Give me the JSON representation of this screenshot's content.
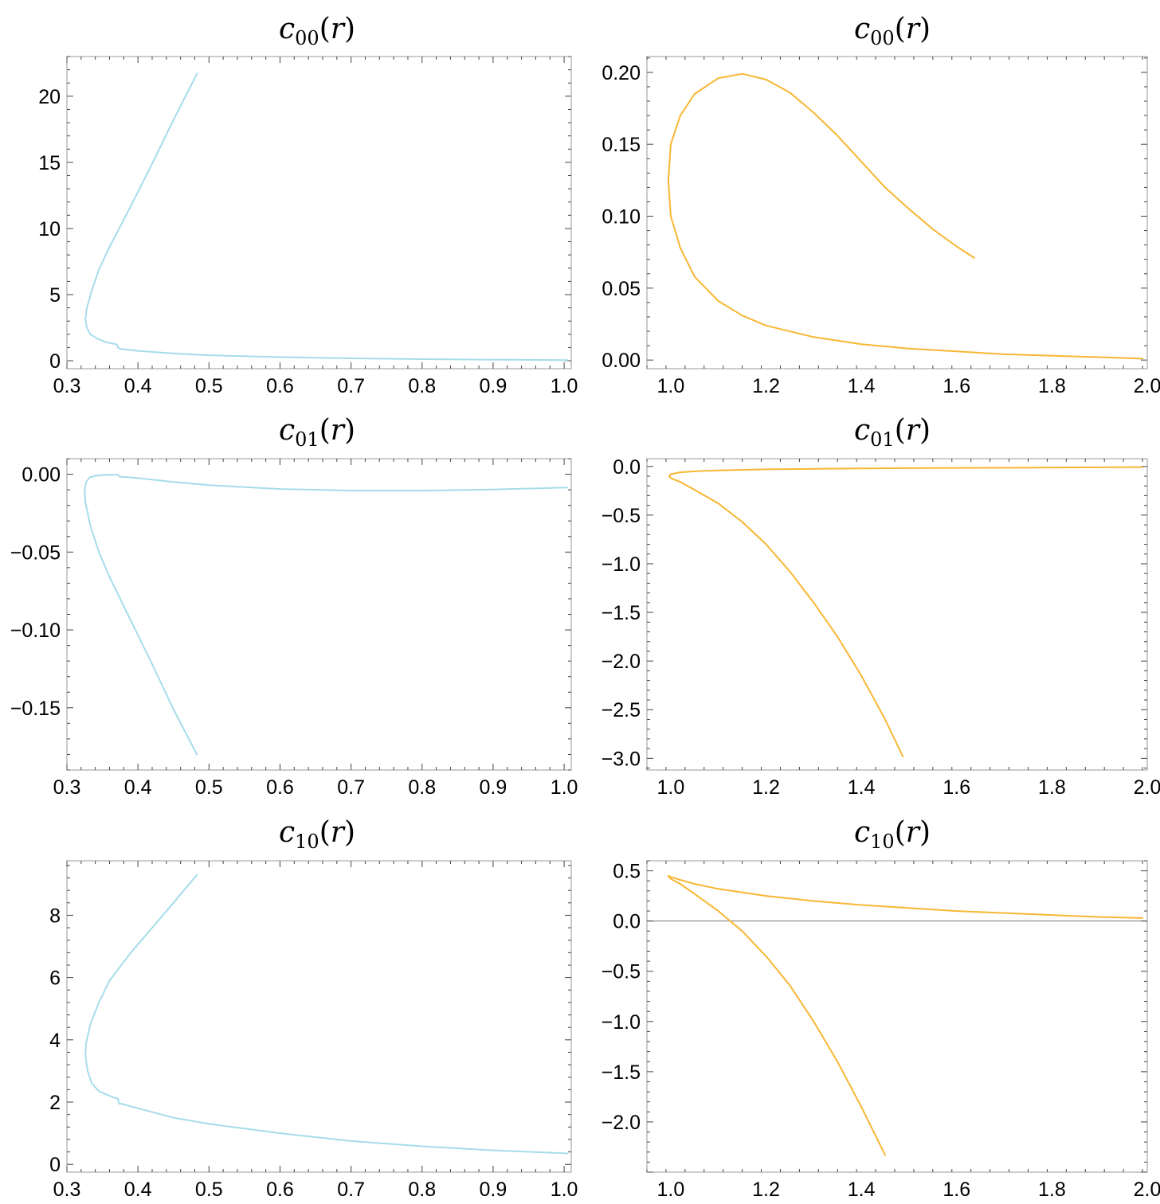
{
  "colors": {
    "left_series": "#a6dcea",
    "right_series": "#f7b733"
  },
  "chart_data": [
    {
      "type": "line",
      "title": {
        "name": "c",
        "sub": "00",
        "arg": "r"
      },
      "xlim": [
        0.3,
        1.01
      ],
      "ylim": [
        -0.6,
        23.0
      ],
      "xticks": [
        "0.3",
        "0.4",
        "0.5",
        "0.6",
        "0.7",
        "0.8",
        "0.9",
        "1.0"
      ],
      "yticks": [
        "0",
        "5",
        "10",
        "15",
        "20"
      ],
      "series": [
        {
          "color": "#a6dcea",
          "x": [
            0.483,
            0.45,
            0.42,
            0.39,
            0.36,
            0.345,
            0.335,
            0.328,
            0.326,
            0.328,
            0.333,
            0.342,
            0.355,
            0.37,
            0.372,
            0.375,
            0.4,
            0.45,
            0.5,
            0.6,
            0.7,
            0.8,
            0.9,
            1.005
          ],
          "y": [
            21.7,
            18.2,
            14.9,
            11.7,
            8.6,
            6.9,
            5.3,
            4.0,
            3.1,
            2.5,
            2.0,
            1.7,
            1.4,
            1.25,
            1.0,
            0.9,
            0.75,
            0.55,
            0.42,
            0.27,
            0.18,
            0.12,
            0.08,
            0.05
          ]
        }
      ]
    },
    {
      "type": "line",
      "title": {
        "name": "c",
        "sub": "00",
        "arg": "r"
      },
      "xlim": [
        0.95,
        2.0
      ],
      "ylim": [
        -0.006,
        0.211
      ],
      "xticks": [
        "1.0",
        "1.2",
        "1.4",
        "1.6",
        "1.8",
        "2.0"
      ],
      "yticks": [
        "0.00",
        "0.05",
        "0.10",
        "0.15",
        "0.20"
      ],
      "series": [
        {
          "color": "#f7b733",
          "x": [
            1.637,
            1.6,
            1.55,
            1.5,
            1.45,
            1.4,
            1.35,
            1.3,
            1.25,
            1.2,
            1.15,
            1.1,
            1.05,
            1.02,
            1.0,
            0.995,
            1.0,
            1.02,
            1.05,
            1.1,
            1.15,
            1.2,
            1.3,
            1.4,
            1.5,
            1.6,
            1.7,
            1.8,
            1.9,
            1.99
          ],
          "y": [
            0.071,
            0.079,
            0.091,
            0.105,
            0.12,
            0.138,
            0.156,
            0.172,
            0.186,
            0.195,
            0.199,
            0.196,
            0.185,
            0.17,
            0.15,
            0.125,
            0.1,
            0.078,
            0.058,
            0.041,
            0.031,
            0.024,
            0.016,
            0.011,
            0.008,
            0.006,
            0.004,
            0.003,
            0.002,
            0.001
          ]
        }
      ]
    },
    {
      "type": "line",
      "title": {
        "name": "c",
        "sub": "01",
        "arg": "r"
      },
      "xlim": [
        0.3,
        1.01
      ],
      "ylim": [
        -0.19,
        0.01
      ],
      "xticks": [
        "0.3",
        "0.4",
        "0.5",
        "0.6",
        "0.7",
        "0.8",
        "0.9",
        "1.0"
      ],
      "yticks": [
        "0.00",
        "-0.05",
        "-0.10",
        "-0.15"
      ],
      "series": [
        {
          "color": "#a6dcea",
          "x": [
            0.483,
            0.45,
            0.42,
            0.39,
            0.36,
            0.345,
            0.333,
            0.326,
            0.325,
            0.327,
            0.332,
            0.34,
            0.35,
            0.36,
            0.372,
            0.374,
            0.4,
            0.45,
            0.5,
            0.6,
            0.7,
            0.8,
            0.9,
            1.005
          ],
          "y": [
            -0.18,
            -0.151,
            -0.122,
            -0.094,
            -0.066,
            -0.05,
            -0.033,
            -0.018,
            -0.01,
            -0.005,
            -0.002,
            -0.001,
            -0.0005,
            -0.0003,
            -0.0004,
            -0.0015,
            -0.0025,
            -0.005,
            -0.007,
            -0.0095,
            -0.0105,
            -0.0105,
            -0.0098,
            -0.0085
          ]
        }
      ]
    },
    {
      "type": "line",
      "title": {
        "name": "c",
        "sub": "01",
        "arg": "r"
      },
      "xlim": [
        0.95,
        2.0
      ],
      "ylim": [
        -3.12,
        0.08
      ],
      "xticks": [
        "1.0",
        "1.2",
        "1.4",
        "1.6",
        "1.8",
        "2.0"
      ],
      "yticks": [
        "0.0",
        "-0.5",
        "-1.0",
        "-1.5",
        "-2.0",
        "-2.5",
        "-3.0"
      ],
      "series": [
        {
          "color": "#f7b733",
          "x": [
            1.487,
            1.45,
            1.4,
            1.35,
            1.3,
            1.25,
            1.2,
            1.15,
            1.1,
            1.05,
            1.02,
            1.0,
            0.997,
            1.0,
            1.02,
            1.05,
            1.1,
            1.2,
            1.3,
            1.4,
            1.5,
            1.6,
            1.7,
            1.8,
            1.9,
            1.99
          ],
          "y": [
            -2.98,
            -2.6,
            -2.15,
            -1.75,
            -1.4,
            -1.08,
            -0.8,
            -0.57,
            -0.38,
            -0.24,
            -0.16,
            -0.12,
            -0.1,
            -0.08,
            -0.06,
            -0.05,
            -0.04,
            -0.03,
            -0.025,
            -0.02,
            -0.017,
            -0.015,
            -0.013,
            -0.011,
            -0.009,
            -0.007
          ]
        }
      ]
    },
    {
      "type": "line",
      "title": {
        "name": "c",
        "sub": "10",
        "arg": "r"
      },
      "xlim": [
        0.3,
        1.01
      ],
      "ylim": [
        -0.25,
        9.75
      ],
      "xticks": [
        "0.3",
        "0.4",
        "0.5",
        "0.6",
        "0.7",
        "0.8",
        "0.9",
        "1.0"
      ],
      "yticks": [
        "0",
        "2",
        "4",
        "6",
        "8"
      ],
      "series": [
        {
          "color": "#a6dcea",
          "x": [
            0.483,
            0.45,
            0.42,
            0.39,
            0.36,
            0.345,
            0.333,
            0.327,
            0.326,
            0.329,
            0.335,
            0.345,
            0.36,
            0.372,
            0.373,
            0.376,
            0.4,
            0.45,
            0.5,
            0.6,
            0.7,
            0.8,
            0.9,
            1.005
          ],
          "y": [
            9.3,
            8.4,
            7.6,
            6.8,
            5.9,
            5.2,
            4.5,
            3.9,
            3.5,
            3.0,
            2.6,
            2.35,
            2.2,
            2.1,
            1.95,
            1.95,
            1.8,
            1.5,
            1.3,
            1.0,
            0.75,
            0.58,
            0.45,
            0.35
          ]
        }
      ]
    },
    {
      "type": "line",
      "title": {
        "name": "c",
        "sub": "10",
        "arg": "r"
      },
      "xlim": [
        0.95,
        2.0
      ],
      "ylim": [
        -2.5,
        0.6
      ],
      "xticks": [
        "1.0",
        "1.2",
        "1.4",
        "1.6",
        "1.8",
        "2.0"
      ],
      "yticks": [
        "0.5",
        "0.0",
        "-0.5",
        "-1.0",
        "-1.5",
        "-2.0"
      ],
      "series": [
        {
          "color": "#f7b733",
          "x": [
            1.45,
            1.4,
            1.35,
            1.3,
            1.25,
            1.2,
            1.15,
            1.1,
            1.05,
            1.02,
            1.0,
            0.995,
            1.0,
            1.02,
            1.05,
            1.1,
            1.2,
            1.3,
            1.4,
            1.5,
            1.6,
            1.7,
            1.8,
            1.9,
            1.99
          ],
          "y": [
            -2.33,
            -1.85,
            -1.4,
            -1.0,
            -0.64,
            -0.35,
            -0.1,
            0.1,
            0.27,
            0.37,
            0.42,
            0.45,
            0.44,
            0.41,
            0.37,
            0.32,
            0.25,
            0.2,
            0.16,
            0.13,
            0.1,
            0.08,
            0.06,
            0.04,
            0.03
          ]
        }
      ]
    }
  ]
}
